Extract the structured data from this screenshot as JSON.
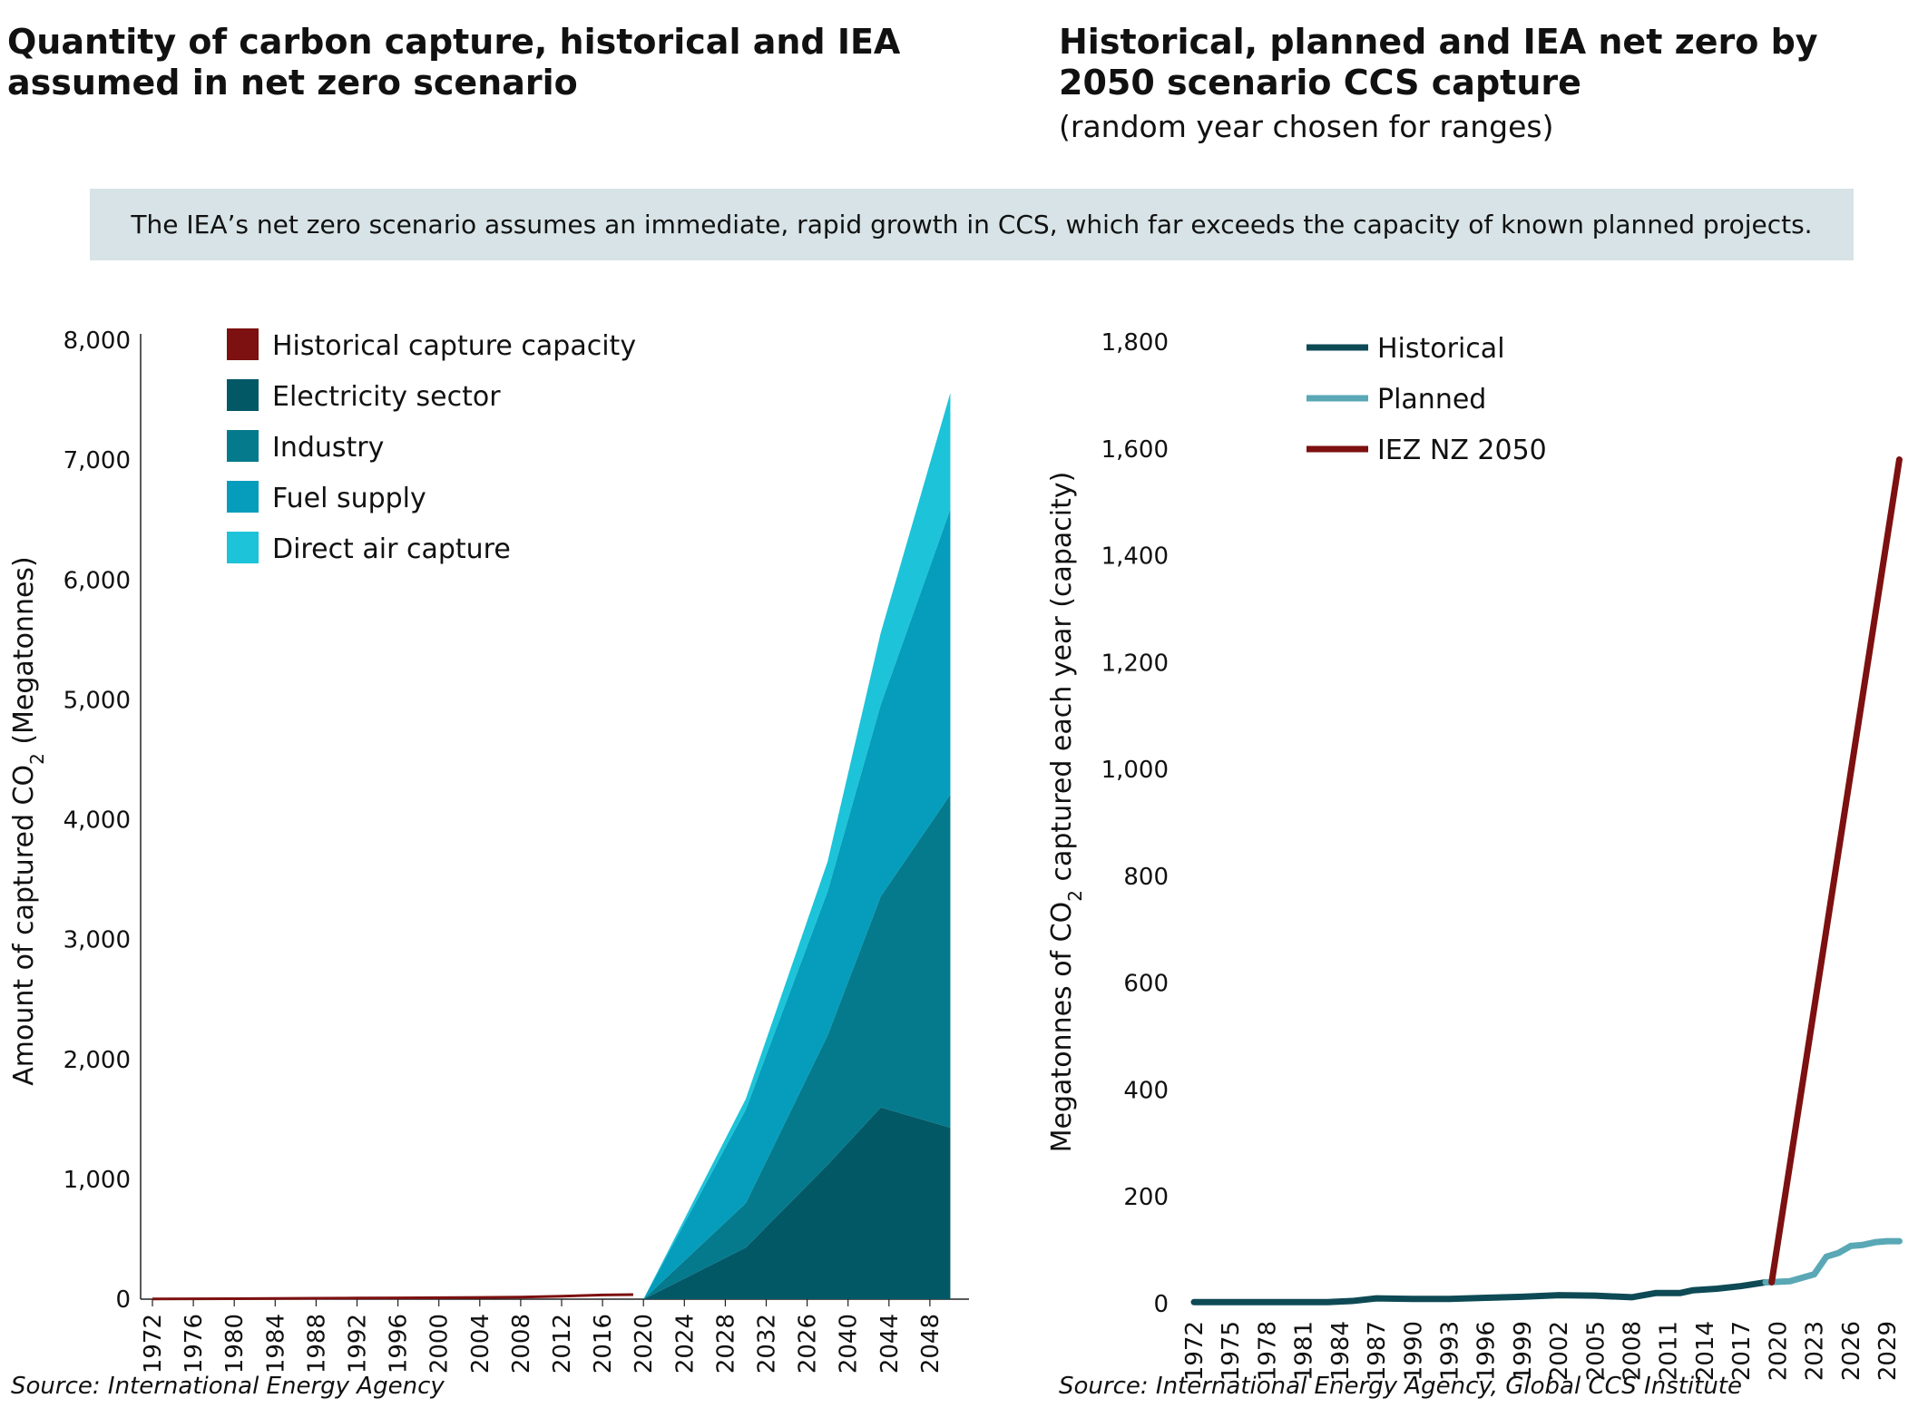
{
  "left_panel": {
    "title": "Quantity of carbon capture, historical and IEA assumed in net zero scenario",
    "source": "Source: International Energy Agency"
  },
  "right_panel": {
    "title": "Historical, planned and IEA net zero by 2050 scenario CCS capture",
    "subtitle": "(random year chosen for ranges)",
    "source": "Source: International Energy Agency, Global CCS Institute"
  },
  "banner": {
    "text": "The IEA’s net zero scenario assumes an immediate, rapid growth in CCS, which far exceeds the capacity of known planned projects."
  },
  "chart_data": [
    {
      "type": "area",
      "stacked": true,
      "ylabel_parts": [
        "Amount of captured CO",
        "2",
        " (Megatonnes)"
      ],
      "ylim": [
        0,
        8000
      ],
      "yticks": [
        0,
        1000,
        2000,
        3000,
        4000,
        5000,
        6000,
        7000,
        8000
      ],
      "ytick_labels": [
        "0",
        "1,000",
        "2,000",
        "3,000",
        "4,000",
        "5,000",
        "6,000",
        "7,000",
        "8,000"
      ],
      "xtick_labels": [
        "1972",
        "1976",
        "1980",
        "1984",
        "1988",
        "1992",
        "1996",
        "2000",
        "2004",
        "2008",
        "2012",
        "2016",
        "2020",
        "2024",
        "2028",
        "2032",
        "2026",
        "2040",
        "2044",
        "2048"
      ],
      "x_count": 20,
      "legend_position": "top-left",
      "series": [
        {
          "name": "Historical capture capacity",
          "color": "#7d1010",
          "x": [
            0,
            1,
            2,
            3,
            4,
            5,
            6,
            7,
            8,
            9,
            10,
            11,
            11.75
          ],
          "values": [
            2,
            3,
            4,
            6,
            8,
            9,
            10,
            12,
            14,
            17,
            25,
            35,
            38
          ]
        },
        {
          "name": "Electricity sector",
          "color": "#035866",
          "x": [
            12,
            14.5,
            16.5,
            17.8,
            19.5
          ],
          "values": [
            0,
            430,
            1120,
            1600,
            1430
          ]
        },
        {
          "name": "Industry",
          "color": "#057a8c",
          "x": [
            12,
            14.5,
            16.5,
            17.8,
            19.5
          ],
          "values": [
            0,
            370,
            1080,
            1760,
            2780
          ]
        },
        {
          "name": "Fuel supply",
          "color": "#059dbb",
          "x": [
            12,
            14.5,
            16.5,
            17.8,
            19.5
          ],
          "values": [
            0,
            780,
            1200,
            1600,
            2380
          ]
        },
        {
          "name": "Direct air capture",
          "color": "#1dc3d8",
          "x": [
            12,
            14.5,
            16.5,
            17.8,
            19.5
          ],
          "values": [
            0,
            90,
            250,
            600,
            970
          ]
        }
      ]
    },
    {
      "type": "line",
      "ylabel_parts": [
        "Megatonnes of CO",
        "2",
        " captured each year (capacity)"
      ],
      "ylim": [
        0,
        1800
      ],
      "yticks": [
        0,
        200,
        400,
        600,
        800,
        1000,
        1200,
        1400,
        1600,
        1800
      ],
      "ytick_labels": [
        "0",
        "200",
        "400",
        "600",
        "800",
        "1,000",
        "1,200",
        "1,400",
        "1,600",
        "1,800"
      ],
      "xlim": [
        1972,
        2030
      ],
      "xticks": [
        1972,
        1975,
        1978,
        1981,
        1984,
        1987,
        1990,
        1993,
        1996,
        1999,
        2002,
        2005,
        2008,
        2011,
        2014,
        2017,
        2020,
        2023,
        2026,
        2029
      ],
      "legend_position": "top-left",
      "series": [
        {
          "name": "Historical",
          "color": "#0e4a55",
          "x": [
            1972,
            1975,
            1980,
            1983,
            1985,
            1987,
            1990,
            1993,
            1996,
            1999,
            2002,
            2005,
            2008,
            2010,
            2012,
            2013,
            2015,
            2017,
            2019
          ],
          "values": [
            3,
            3,
            3,
            3,
            5,
            10,
            9,
            9,
            11,
            13,
            16,
            15,
            12,
            20,
            20,
            25,
            28,
            33,
            40
          ]
        },
        {
          "name": "Planned",
          "color": "#5aa8b6",
          "x": [
            2019,
            2021,
            2023,
            2024,
            2025,
            2026,
            2027,
            2028,
            2029,
            2030
          ],
          "values": [
            40,
            42,
            55,
            88,
            95,
            108,
            110,
            115,
            117,
            117
          ]
        },
        {
          "name": "IEZ NZ 2050",
          "color": "#7d1010",
          "x": [
            2019.5,
            2030
          ],
          "values": [
            40,
            1580
          ]
        }
      ]
    }
  ]
}
